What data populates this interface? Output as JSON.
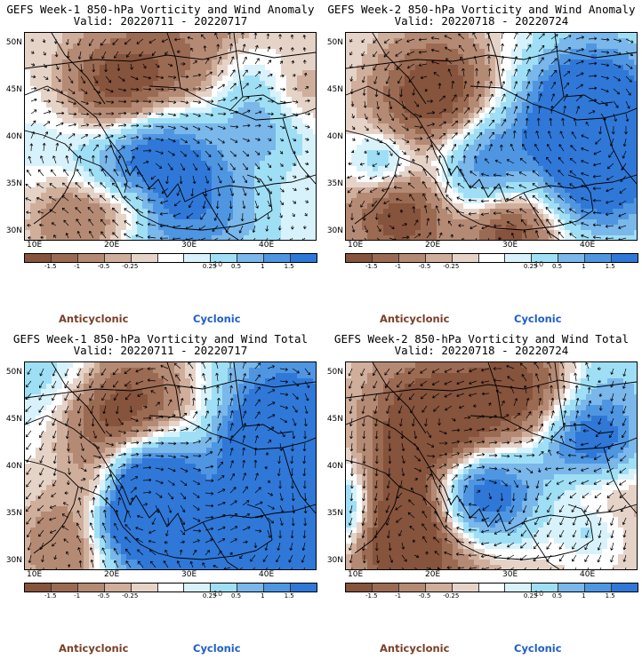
{
  "panels": [
    {
      "title": "GEFS Week-1 850-hPa Vorticity and Wind Anomaly",
      "valid": "Valid: 20220711 - 20220717",
      "kind": "anomaly",
      "seed": 11
    },
    {
      "title": "GEFS Week-2 850-hPa Vorticity and Wind Anomaly",
      "valid": "Valid: 20220718 - 20220724",
      "kind": "anomaly",
      "seed": 23
    },
    {
      "title": "GEFS Week-1 850-hPa Vorticity and Wind Total",
      "valid": "Valid: 20220711 - 20220717",
      "kind": "total",
      "seed": 37
    },
    {
      "title": "GEFS Week-2 850-hPa Vorticity and Wind Total",
      "valid": "Valid: 20220718 - 20220724",
      "kind": "total",
      "seed": 53
    }
  ],
  "map": {
    "lat_labels": [
      "50N",
      "45N",
      "40N",
      "35N",
      "30N"
    ],
    "lon_labels": [
      "10E",
      "20E",
      "30E",
      "40E"
    ],
    "lat_range": [
      29,
      51
    ],
    "lon_range": [
      9,
      47
    ]
  },
  "colorbar": {
    "labels": [
      "-1.5",
      "-1",
      "-0.5",
      "-0.25",
      "0.25",
      "0.5",
      "1",
      "1.5"
    ],
    "note": "10",
    "colors": [
      "#86533d",
      "#9b6a52",
      "#b58a74",
      "#cfae9c",
      "#e6d3c8",
      "#ffffff",
      "#d8f2fb",
      "#9fdff5",
      "#7ab7ea",
      "#4f96e2",
      "#2f78d8"
    ]
  },
  "legend": {
    "anticyclonic": "Anticyclonic",
    "cyclonic": "Cyclonic",
    "anti_color": "#7b3f2a",
    "cyc_color": "#1f5fc8"
  }
}
